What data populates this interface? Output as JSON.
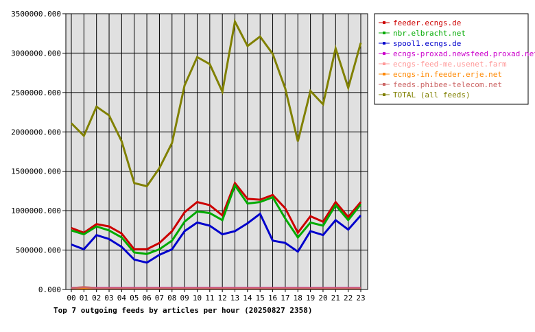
{
  "chart_data": {
    "type": "line",
    "title": "Top 7 outgoing feeds by articles per hour (20250827 2358)",
    "xlabel": "",
    "ylabel": "",
    "categories": [
      "00",
      "01",
      "02",
      "03",
      "04",
      "05",
      "06",
      "07",
      "08",
      "09",
      "10",
      "11",
      "12",
      "13",
      "14",
      "15",
      "16",
      "17",
      "18",
      "19",
      "20",
      "21",
      "22",
      "23"
    ],
    "ylim": [
      0,
      3500000
    ],
    "yticks": [
      0,
      500000,
      1000000,
      1500000,
      2000000,
      2500000,
      3000000,
      3500000
    ],
    "ytick_labels": [
      "0.000",
      "500000.000",
      "1000000.000",
      "1500000.000",
      "2000000.000",
      "2500000.000",
      "3000000.000",
      "3500000.000"
    ],
    "grid": true,
    "legend_position": "right",
    "series": [
      {
        "name": "feeder.ecngs.de",
        "color": "#cc0000",
        "values": [
          780000,
          720000,
          830000,
          800000,
          710000,
          510000,
          510000,
          590000,
          740000,
          980000,
          1110000,
          1070000,
          940000,
          1350000,
          1150000,
          1140000,
          1200000,
          1030000,
          720000,
          930000,
          860000,
          1110000,
          920000,
          1110000
        ]
      },
      {
        "name": "nbr.elbracht.net",
        "color": "#00aa00",
        "values": [
          750000,
          700000,
          800000,
          750000,
          660000,
          470000,
          450000,
          510000,
          620000,
          860000,
          990000,
          970000,
          880000,
          1320000,
          1090000,
          1110000,
          1170000,
          900000,
          660000,
          850000,
          810000,
          1070000,
          880000,
          1080000
        ]
      },
      {
        "name": "spool1.ecngs.de",
        "color": "#0000cc",
        "values": [
          570000,
          510000,
          690000,
          640000,
          540000,
          380000,
          340000,
          440000,
          510000,
          740000,
          850000,
          810000,
          700000,
          740000,
          840000,
          960000,
          620000,
          590000,
          480000,
          740000,
          690000,
          880000,
          760000,
          940000
        ]
      },
      {
        "name": "ecngs-proxad.newsfeed.proxad.net",
        "color": "#cc00cc",
        "values": [
          20000,
          25000,
          20000,
          20000,
          20000,
          20000,
          20000,
          20000,
          20000,
          20000,
          20000,
          20000,
          20000,
          20000,
          20000,
          20000,
          20000,
          20000,
          20000,
          20000,
          20000,
          20000,
          20000,
          20000
        ]
      },
      {
        "name": "ecngs-feed-me.usenet.farm",
        "color": "#ff9999",
        "values": [
          10000,
          12000,
          10000,
          10000,
          10000,
          10000,
          10000,
          10000,
          10000,
          10000,
          10000,
          10000,
          10000,
          10000,
          10000,
          10000,
          10000,
          10000,
          10000,
          10000,
          10000,
          10000,
          10000,
          10000
        ]
      },
      {
        "name": "ecngs-in.feeder.erje.net",
        "color": "#ff8800",
        "values": [
          8000,
          8000,
          8000,
          8000,
          8000,
          8000,
          8000,
          8000,
          8000,
          8000,
          8000,
          8000,
          8000,
          8000,
          8000,
          8000,
          8000,
          8000,
          8000,
          8000,
          8000,
          8000,
          8000,
          8000
        ]
      },
      {
        "name": "feeds.phibee-telecom.net",
        "color": "#cc6666",
        "values": [
          15000,
          30000,
          15000,
          15000,
          15000,
          15000,
          15000,
          15000,
          15000,
          15000,
          15000,
          15000,
          15000,
          15000,
          15000,
          15000,
          15000,
          15000,
          15000,
          15000,
          15000,
          15000,
          15000,
          15000
        ]
      },
      {
        "name": "TOTAL (all feeds)",
        "color": "#808000",
        "values": [
          2110000,
          1950000,
          2320000,
          2210000,
          1880000,
          1350000,
          1310000,
          1540000,
          1860000,
          2590000,
          2950000,
          2860000,
          2510000,
          3400000,
          3090000,
          3210000,
          2990000,
          2550000,
          1880000,
          2520000,
          2350000,
          3060000,
          2560000,
          3130000
        ]
      }
    ]
  }
}
